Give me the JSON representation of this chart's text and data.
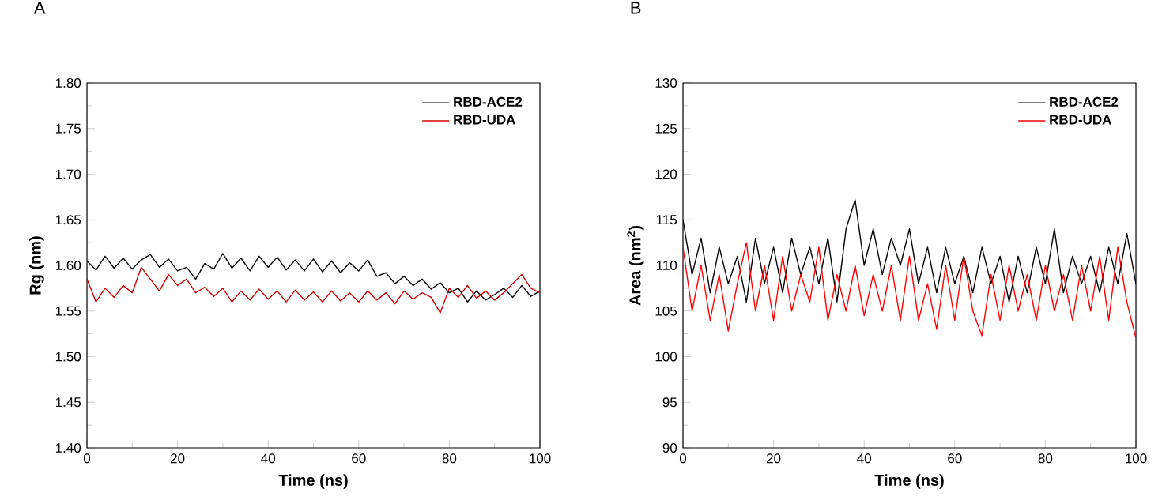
{
  "chart_data": [
    {
      "type": "line",
      "title": "A",
      "xlabel": "Time (ns)",
      "ylabel": "Rg (nm)",
      "legend": "top right",
      "grid": false,
      "xlim": [
        0,
        100
      ],
      "xticks": [
        0,
        20,
        40,
        60,
        80,
        100
      ],
      "ylim": [
        1.4,
        1.8
      ],
      "yticks": [
        {
          "value": 1.4,
          "label": "1.40"
        },
        {
          "value": 1.45,
          "label": "1.45"
        },
        {
          "value": 1.5,
          "label": "1.50"
        },
        {
          "value": 1.55,
          "label": "1.55"
        },
        {
          "value": 1.6,
          "label": "1.60"
        },
        {
          "value": 1.65,
          "label": "1.65"
        },
        {
          "value": 1.7,
          "label": "1.70"
        },
        {
          "value": 1.75,
          "label": "1.75"
        },
        {
          "value": 1.8,
          "label": "1.80"
        }
      ],
      "x": [
        0,
        2,
        4,
        6,
        8,
        10,
        12,
        14,
        16,
        18,
        20,
        22,
        24,
        26,
        28,
        30,
        32,
        34,
        36,
        38,
        40,
        42,
        44,
        46,
        48,
        50,
        52,
        54,
        56,
        58,
        60,
        62,
        64,
        66,
        68,
        70,
        72,
        74,
        76,
        78,
        80,
        82,
        84,
        86,
        88,
        90,
        92,
        94,
        96,
        98,
        100
      ],
      "series": [
        {
          "name": "RBD-ACE2",
          "color": "#000000",
          "values": [
            1.605,
            1.595,
            1.61,
            1.597,
            1.608,
            1.596,
            1.606,
            1.612,
            1.598,
            1.607,
            1.594,
            1.598,
            1.585,
            1.602,
            1.596,
            1.613,
            1.597,
            1.608,
            1.594,
            1.61,
            1.598,
            1.609,
            1.595,
            1.606,
            1.594,
            1.607,
            1.593,
            1.605,
            1.592,
            1.603,
            1.594,
            1.606,
            1.588,
            1.592,
            1.58,
            1.588,
            1.578,
            1.585,
            1.574,
            1.581,
            1.57,
            1.575,
            1.56,
            1.572,
            1.562,
            1.568,
            1.575,
            1.565,
            1.578,
            1.566,
            1.572
          ]
        },
        {
          "name": "RBD-UDA",
          "color": "#d40000",
          "values": [
            1.585,
            1.56,
            1.575,
            1.565,
            1.578,
            1.57,
            1.598,
            1.585,
            1.572,
            1.59,
            1.578,
            1.585,
            1.57,
            1.576,
            1.566,
            1.575,
            1.56,
            1.572,
            1.562,
            1.574,
            1.563,
            1.572,
            1.56,
            1.573,
            1.562,
            1.571,
            1.56,
            1.572,
            1.561,
            1.57,
            1.56,
            1.572,
            1.562,
            1.57,
            1.558,
            1.572,
            1.563,
            1.57,
            1.565,
            1.548,
            1.575,
            1.565,
            1.578,
            1.564,
            1.572,
            1.562,
            1.57,
            1.58,
            1.59,
            1.575,
            1.57
          ]
        }
      ]
    },
    {
      "type": "line",
      "title": "B",
      "xlabel": "Time (ns)",
      "ylabel": "Area (nm$^{2}$)",
      "legend": "top right",
      "grid": false,
      "xlim": [
        0,
        100
      ],
      "xticks": [
        0,
        20,
        40,
        60,
        80,
        100
      ],
      "ylim": [
        90,
        130
      ],
      "yticks": [
        90,
        95,
        100,
        105,
        110,
        115,
        120,
        125,
        130
      ],
      "x": [
        0,
        2,
        4,
        6,
        8,
        10,
        12,
        14,
        16,
        18,
        20,
        22,
        24,
        26,
        28,
        30,
        32,
        34,
        36,
        38,
        40,
        42,
        44,
        46,
        48,
        50,
        52,
        54,
        56,
        58,
        60,
        62,
        64,
        66,
        68,
        70,
        72,
        74,
        76,
        78,
        80,
        82,
        84,
        86,
        88,
        90,
        92,
        94,
        96,
        98,
        100
      ],
      "series": [
        {
          "name": "RBD-ACE2",
          "color": "#000000",
          "values": [
            115,
            109,
            113,
            107,
            112,
            108,
            111,
            106,
            113,
            108,
            112,
            107,
            113,
            109,
            112,
            108,
            113,
            106,
            114,
            117.2,
            110,
            114,
            109,
            113,
            110,
            114,
            108,
            112,
            107,
            112,
            108,
            111,
            107,
            112,
            108,
            111,
            106,
            111,
            107,
            112,
            108,
            114,
            107,
            111,
            108,
            111,
            107,
            112,
            108,
            113.5,
            108
          ]
        },
        {
          "name": "RBD-UDA",
          "color": "#ff0000",
          "values": [
            112,
            105,
            110,
            104,
            109,
            102.8,
            108,
            112.5,
            105,
            110,
            104,
            111,
            105,
            109,
            106,
            112,
            104,
            109,
            105,
            110,
            104.5,
            109,
            105,
            110,
            104,
            111,
            104,
            108,
            103,
            110,
            104,
            111,
            105,
            102.3,
            109,
            104,
            110,
            105,
            109,
            104,
            110,
            105,
            109,
            104,
            110,
            105,
            111,
            104,
            112,
            106,
            102
          ]
        }
      ]
    }
  ]
}
